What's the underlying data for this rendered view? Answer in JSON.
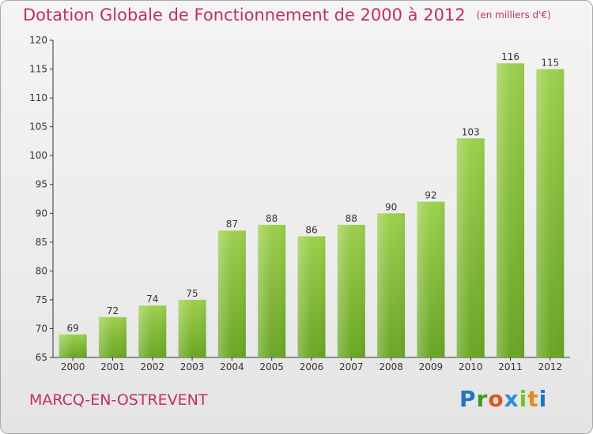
{
  "title": "Dotation Globale de Fonctionnement de 2000 à 2012",
  "unit": "(en milliers d'€)",
  "commune": "MARCQ-EN-OSTREVENT",
  "logo": {
    "letters": [
      "P",
      "r",
      "o",
      "x",
      "i",
      "t",
      "i"
    ],
    "colors": [
      "#1f74c6",
      "#3a9a2e",
      "#e5531a",
      "#2a8fd6",
      "#7cbf2c",
      "#e58a1a",
      "#1f74c6"
    ]
  },
  "colors": {
    "bar_light": "#9dd04e",
    "bar_dark": "#6aa625",
    "title": "#c22f5f"
  },
  "chart_data": {
    "type": "bar",
    "title": "Dotation Globale de Fonctionnement de 2000 à 2012",
    "categories": [
      "2000",
      "2001",
      "2002",
      "2003",
      "2004",
      "2005",
      "2006",
      "2007",
      "2008",
      "2009",
      "2010",
      "2011",
      "2012"
    ],
    "values": [
      69,
      72,
      74,
      75,
      87,
      88,
      86,
      88,
      90,
      92,
      103,
      116,
      115
    ],
    "ylim": [
      65,
      120
    ],
    "yticks": [
      65,
      70,
      75,
      80,
      85,
      90,
      95,
      100,
      105,
      110,
      115,
      120
    ],
    "grid": false,
    "xlabel": "",
    "ylabel": ""
  }
}
